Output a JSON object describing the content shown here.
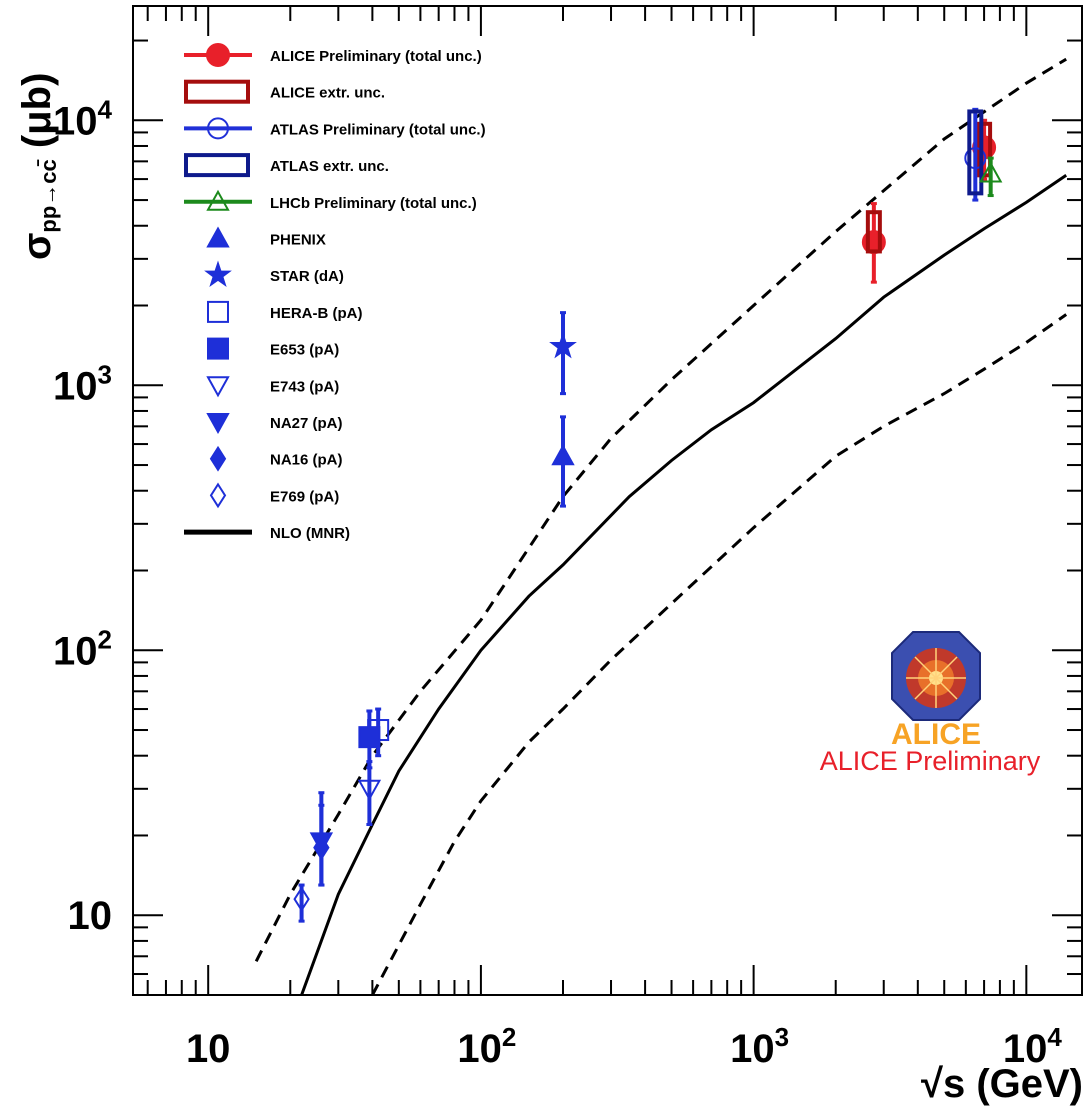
{
  "chart_data": {
    "type": "scatter",
    "xlabel": "√s (GeV)",
    "ylabel": "σpp→cc̄ (μb)",
    "xscale": "log",
    "yscale": "log",
    "xlim": [
      5.3,
      16000
    ],
    "ylim": [
      5,
      27000
    ],
    "x_ticks": [
      "10",
      "10^2",
      "10^3",
      "10^4"
    ],
    "y_ticks": [
      "10",
      "10^2",
      "10^3",
      "10^4"
    ],
    "legend_position": "top-left",
    "series": [
      {
        "name": "ALICE Preliminary (total unc.)",
        "marker": "filled-circle",
        "color": "#e8202a",
        "points": [
          {
            "x": 2760,
            "y": 3470,
            "ylo": 2450,
            "yhi": 4850
          },
          {
            "x": 7000,
            "y": 7900,
            "ylo": 6000,
            "yhi": 10000
          }
        ]
      },
      {
        "name": "ALICE extr. unc.",
        "marker": "open-rect",
        "color": "#a50d0d",
        "points": [
          {
            "x": 2760,
            "ylo": 3200,
            "yhi": 4500
          },
          {
            "x": 7000,
            "ylo": 6200,
            "yhi": 9700
          }
        ]
      },
      {
        "name": "ATLAS Preliminary (total unc.)",
        "marker": "open-circle",
        "color": "#2030d8",
        "points": [
          {
            "x": 6500,
            "y": 7200,
            "ylo": 5000,
            "yhi": 11000
          }
        ]
      },
      {
        "name": "ATLAS extr. unc.",
        "marker": "open-rect",
        "color": "#0e1a8c",
        "points": [
          {
            "x": 6500,
            "ylo": 5300,
            "yhi": 10800
          }
        ]
      },
      {
        "name": "LHCb Preliminary (total unc.)",
        "marker": "open-triangle",
        "color": "#1c8a1c",
        "points": [
          {
            "x": 7400,
            "y": 6300,
            "ylo": 5200,
            "yhi": 7200
          }
        ]
      },
      {
        "name": "PHENIX",
        "marker": "filled-triangle",
        "color": "#1e2fd8",
        "points": [
          {
            "x": 200,
            "y": 540,
            "ylo": 350,
            "yhi": 760
          }
        ]
      },
      {
        "name": "STAR (dA)",
        "marker": "star",
        "color": "#1e2fd8",
        "points": [
          {
            "x": 200,
            "y": 1400,
            "ylo": 930,
            "yhi": 1880
          }
        ]
      },
      {
        "name": "HERA-B (pA)",
        "marker": "open-square",
        "color": "#1e2fd8",
        "points": [
          {
            "x": 42,
            "y": 50,
            "ylo": 40,
            "yhi": 60
          }
        ]
      },
      {
        "name": "E653 (pA)",
        "marker": "filled-square",
        "color": "#1e2fd8",
        "points": [
          {
            "x": 39,
            "y": 47,
            "ylo": 36,
            "yhi": 59
          }
        ]
      },
      {
        "name": "E743 (pA)",
        "marker": "open-down-triangle",
        "color": "#1e2fd8",
        "points": [
          {
            "x": 39,
            "y": 30,
            "ylo": 22,
            "yhi": 38
          }
        ]
      },
      {
        "name": "NA27 (pA)",
        "marker": "filled-down-triangle",
        "color": "#1e2fd8",
        "points": [
          {
            "x": 26,
            "y": 19,
            "ylo": 13,
            "yhi": 29
          }
        ]
      },
      {
        "name": "NA16 (pA)",
        "marker": "filled-diamond",
        "color": "#1e2fd8",
        "points": [
          {
            "x": 26,
            "y": 18,
            "ylo": 13,
            "yhi": 26
          }
        ]
      },
      {
        "name": "E769 (pA)",
        "marker": "open-diamond",
        "color": "#1e2fd8",
        "points": [
          {
            "x": 22,
            "y": 11.5,
            "ylo": 9.5,
            "yhi": 13
          }
        ]
      }
    ],
    "curves": [
      {
        "name": "NLO (MNR)",
        "style": "solid",
        "color": "#000000",
        "points": [
          [
            22,
            5
          ],
          [
            30,
            12
          ],
          [
            40,
            22
          ],
          [
            50,
            35
          ],
          [
            70,
            60
          ],
          [
            100,
            100
          ],
          [
            150,
            160
          ],
          [
            200,
            210
          ],
          [
            350,
            380
          ],
          [
            500,
            520
          ],
          [
            700,
            680
          ],
          [
            1000,
            860
          ],
          [
            2000,
            1500
          ],
          [
            3000,
            2150
          ],
          [
            5000,
            3100
          ],
          [
            7000,
            3900
          ],
          [
            10000,
            4900
          ],
          [
            14000,
            6200
          ]
        ]
      },
      {
        "style": "dashed",
        "color": "#000000",
        "points": [
          [
            15,
            6.7
          ],
          [
            20,
            12
          ],
          [
            30,
            24
          ],
          [
            40,
            40
          ],
          [
            60,
            70
          ],
          [
            100,
            130
          ],
          [
            200,
            380
          ],
          [
            300,
            630
          ],
          [
            500,
            1050
          ],
          [
            1000,
            2000
          ],
          [
            2000,
            3800
          ],
          [
            5000,
            8500
          ],
          [
            10000,
            13800
          ],
          [
            14000,
            17000
          ]
        ]
      },
      {
        "style": "dashed",
        "color": "#000000",
        "points": [
          [
            40,
            5
          ],
          [
            60,
            11
          ],
          [
            80,
            19
          ],
          [
            100,
            27
          ],
          [
            150,
            45
          ],
          [
            200,
            60
          ],
          [
            300,
            92
          ],
          [
            500,
            150
          ],
          [
            1000,
            290
          ],
          [
            2000,
            540
          ],
          [
            3000,
            700
          ],
          [
            5000,
            930
          ],
          [
            7000,
            1150
          ],
          [
            10000,
            1450
          ],
          [
            14000,
            1850
          ]
        ]
      }
    ]
  },
  "labels": {
    "ylabel_sigma": "σ",
    "ylabel_sub": "pp→cc̄",
    "ylabel_unit": " (μb)",
    "xlabel": "√s (GeV)",
    "logo_text": "ALICE",
    "watermark": "ALICE Preliminary"
  },
  "colors": {
    "alice_red": "#e8202a",
    "alice_dark_red": "#a50d0d",
    "atlas_blue": "#2030d8",
    "atlas_dark_blue": "#0e1a8c",
    "lhcb_green": "#1c8a1c",
    "data_blue": "#1e2fd8",
    "logo_orange": "#f7a325"
  }
}
